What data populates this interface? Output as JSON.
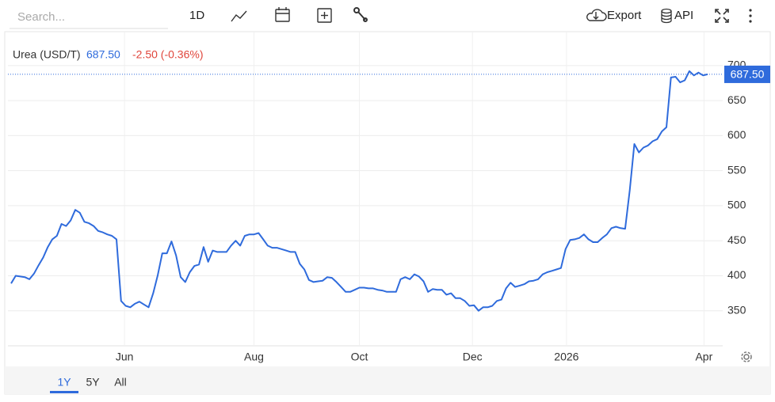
{
  "toolbar": {
    "search_placeholder": "Search...",
    "interval": "1D",
    "export": "Export",
    "api": "API"
  },
  "ranges": [
    "1Y",
    "5Y",
    "All"
  ],
  "chart_data": {
    "type": "line",
    "series": [
      {
        "name": "Urea (USD/T)",
        "color": "#2f6bdc",
        "values": [
          389,
          400,
          399,
          398,
          395,
          403,
          415,
          426,
          441,
          452,
          457,
          474,
          471,
          479,
          494,
          490,
          477,
          475,
          471,
          464,
          462,
          459,
          457,
          452,
          364,
          357,
          355,
          360,
          363,
          359,
          355,
          375,
          401,
          432,
          432,
          449,
          429,
          398,
          391,
          405,
          414,
          416,
          441,
          420,
          436,
          434,
          434,
          434,
          443,
          450,
          443,
          457,
          459,
          459,
          461,
          452,
          443,
          440,
          440,
          438,
          436,
          434,
          434,
          417,
          409,
          394,
          391,
          392,
          393,
          398,
          397,
          391,
          384,
          377,
          377,
          380,
          383,
          383,
          382,
          382,
          380,
          379,
          377,
          377,
          377,
          395,
          398,
          395,
          402,
          399,
          392,
          377,
          381,
          380,
          380,
          373,
          375,
          368,
          368,
          364,
          357,
          358,
          350,
          355,
          355,
          357,
          364,
          366,
          382,
          390,
          384,
          386,
          388,
          392,
          393,
          395,
          402,
          405,
          407,
          409,
          411,
          438,
          451,
          452,
          454,
          459,
          452,
          448,
          448,
          454,
          459,
          468,
          470,
          468,
          467,
          522,
          588,
          576,
          583,
          586,
          592,
          595,
          606,
          612,
          683,
          684,
          676,
          679,
          692,
          686,
          690,
          686,
          687.5
        ]
      }
    ],
    "last_price_label": "687.50",
    "change_label": "-2.50 (-0.36%)",
    "ylim": [
      300,
      750
    ],
    "yticks": [
      350,
      400,
      450,
      500,
      550,
      600,
      650,
      700
    ],
    "xlim": [
      0,
      152
    ],
    "xticks": [
      {
        "value": 24.75,
        "label": "Jun"
      },
      {
        "value": 53,
        "label": "Aug"
      },
      {
        "value": 76,
        "label": "Oct"
      },
      {
        "value": 100.67,
        "label": "Dec"
      },
      {
        "value": 121.2,
        "label": "2026"
      },
      {
        "value": 151.2,
        "label": "Apr"
      }
    ],
    "grid": true
  }
}
